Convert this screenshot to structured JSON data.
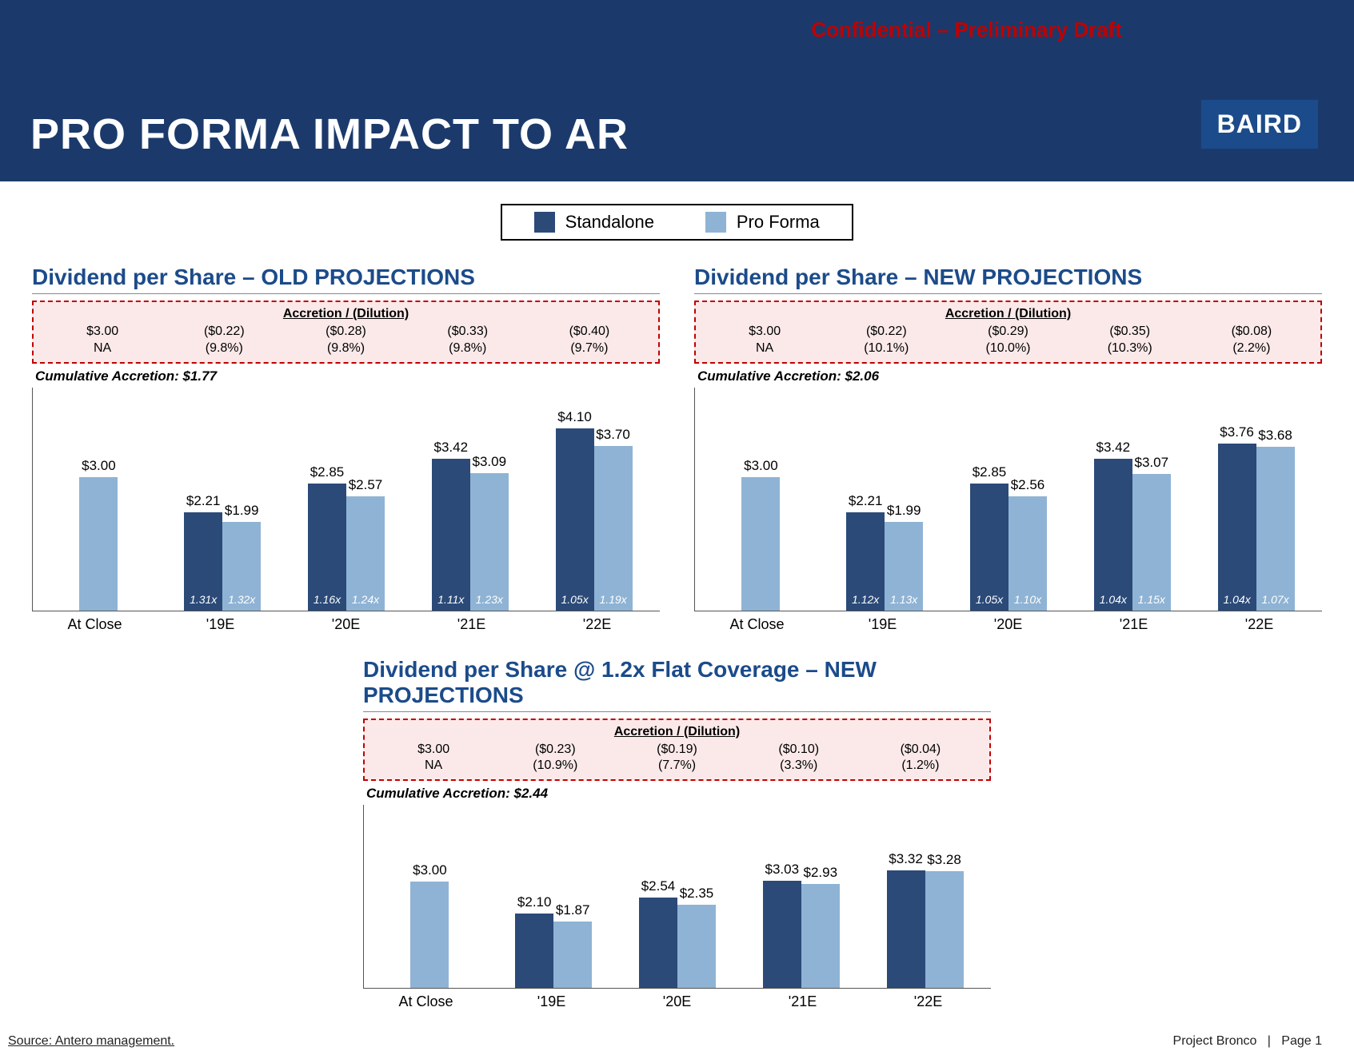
{
  "header": {
    "confidential": "Confidential – Preliminary Draft",
    "title": "PRO FORMA IMPACT TO AR",
    "logo": "BAIRD"
  },
  "legend": {
    "standalone": {
      "label": "Standalone",
      "color": "#2b4a78"
    },
    "proforma": {
      "label": "Pro Forma",
      "color": "#8fb3d4"
    }
  },
  "colors": {
    "standalone": "#2b4a78",
    "proforma": "#8fb3d4",
    "axis": "#555555"
  },
  "ymax": 4.5,
  "charts": [
    {
      "title": "Dividend per Share – OLD PROJECTIONS",
      "accretion_header": "Accretion / (Dilution)",
      "accretion": [
        {
          "v1": "$3.00",
          "v2": "NA"
        },
        {
          "v1": "($0.22)",
          "v2": "(9.8%)"
        },
        {
          "v1": "($0.28)",
          "v2": "(9.8%)"
        },
        {
          "v1": "($0.33)",
          "v2": "(9.8%)"
        },
        {
          "v1": "($0.40)",
          "v2": "(9.7%)"
        }
      ],
      "cumulative": "Cumulative Accretion: $1.77",
      "categories": [
        "At Close",
        "'19E",
        "'20E",
        "'21E",
        "'22E"
      ],
      "groups": [
        {
          "bars": [
            {
              "value": 3.0,
              "label": "$3.00",
              "color": "#8fb3d4",
              "inner": ""
            }
          ]
        },
        {
          "bars": [
            {
              "value": 2.21,
              "label": "$2.21",
              "color": "#2b4a78",
              "inner": "1.31x"
            },
            {
              "value": 1.99,
              "label": "$1.99",
              "color": "#8fb3d4",
              "inner": "1.32x"
            }
          ]
        },
        {
          "bars": [
            {
              "value": 2.85,
              "label": "$2.85",
              "color": "#2b4a78",
              "inner": "1.16x"
            },
            {
              "value": 2.57,
              "label": "$2.57",
              "color": "#8fb3d4",
              "inner": "1.24x"
            }
          ]
        },
        {
          "bars": [
            {
              "value": 3.42,
              "label": "$3.42",
              "color": "#2b4a78",
              "inner": "1.11x"
            },
            {
              "value": 3.09,
              "label": "$3.09",
              "color": "#8fb3d4",
              "inner": "1.23x"
            }
          ]
        },
        {
          "bars": [
            {
              "value": 4.1,
              "label": "$4.10",
              "color": "#2b4a78",
              "inner": "1.05x"
            },
            {
              "value": 3.7,
              "label": "$3.70",
              "color": "#8fb3d4",
              "inner": "1.19x"
            }
          ]
        }
      ]
    },
    {
      "title": "Dividend per Share – NEW PROJECTIONS",
      "accretion_header": "Accretion / (Dilution)",
      "accretion": [
        {
          "v1": "$3.00",
          "v2": "NA"
        },
        {
          "v1": "($0.22)",
          "v2": "(10.1%)"
        },
        {
          "v1": "($0.29)",
          "v2": "(10.0%)"
        },
        {
          "v1": "($0.35)",
          "v2": "(10.3%)"
        },
        {
          "v1": "($0.08)",
          "v2": "(2.2%)"
        }
      ],
      "cumulative": "Cumulative Accretion: $2.06",
      "categories": [
        "At Close",
        "'19E",
        "'20E",
        "'21E",
        "'22E"
      ],
      "groups": [
        {
          "bars": [
            {
              "value": 3.0,
              "label": "$3.00",
              "color": "#8fb3d4",
              "inner": ""
            }
          ]
        },
        {
          "bars": [
            {
              "value": 2.21,
              "label": "$2.21",
              "color": "#2b4a78",
              "inner": "1.12x"
            },
            {
              "value": 1.99,
              "label": "$1.99",
              "color": "#8fb3d4",
              "inner": "1.13x"
            }
          ]
        },
        {
          "bars": [
            {
              "value": 2.85,
              "label": "$2.85",
              "color": "#2b4a78",
              "inner": "1.05x"
            },
            {
              "value": 2.56,
              "label": "$2.56",
              "color": "#8fb3d4",
              "inner": "1.10x"
            }
          ]
        },
        {
          "bars": [
            {
              "value": 3.42,
              "label": "$3.42",
              "color": "#2b4a78",
              "inner": "1.04x"
            },
            {
              "value": 3.07,
              "label": "$3.07",
              "color": "#8fb3d4",
              "inner": "1.15x"
            }
          ]
        },
        {
          "bars": [
            {
              "value": 3.76,
              "label": "$3.76",
              "color": "#2b4a78",
              "inner": "1.04x"
            },
            {
              "value": 3.68,
              "label": "$3.68",
              "color": "#8fb3d4",
              "inner": "1.07x"
            }
          ]
        }
      ]
    },
    {
      "title": "Dividend per Share @ 1.2x Flat Coverage – NEW PROJECTIONS",
      "accretion_header": "Accretion / (Dilution)",
      "accretion": [
        {
          "v1": "$3.00",
          "v2": "NA"
        },
        {
          "v1": "($0.23)",
          "v2": "(10.9%)"
        },
        {
          "v1": "($0.19)",
          "v2": "(7.7%)"
        },
        {
          "v1": "($0.10)",
          "v2": "(3.3%)"
        },
        {
          "v1": "($0.04)",
          "v2": "(1.2%)"
        }
      ],
      "cumulative": "Cumulative Accretion: $2.44",
      "categories": [
        "At Close",
        "'19E",
        "'20E",
        "'21E",
        "'22E"
      ],
      "groups": [
        {
          "bars": [
            {
              "value": 3.0,
              "label": "$3.00",
              "color": "#8fb3d4",
              "inner": ""
            }
          ]
        },
        {
          "bars": [
            {
              "value": 2.1,
              "label": "$2.10",
              "color": "#2b4a78",
              "inner": ""
            },
            {
              "value": 1.87,
              "label": "$1.87",
              "color": "#8fb3d4",
              "inner": ""
            }
          ]
        },
        {
          "bars": [
            {
              "value": 2.54,
              "label": "$2.54",
              "color": "#2b4a78",
              "inner": ""
            },
            {
              "value": 2.35,
              "label": "$2.35",
              "color": "#8fb3d4",
              "inner": ""
            }
          ]
        },
        {
          "bars": [
            {
              "value": 3.03,
              "label": "$3.03",
              "color": "#2b4a78",
              "inner": ""
            },
            {
              "value": 2.93,
              "label": "$2.93",
              "color": "#8fb3d4",
              "inner": ""
            }
          ]
        },
        {
          "bars": [
            {
              "value": 3.32,
              "label": "$3.32",
              "color": "#2b4a78",
              "inner": ""
            },
            {
              "value": 3.28,
              "label": "$3.28",
              "color": "#8fb3d4",
              "inner": ""
            }
          ]
        }
      ]
    }
  ],
  "footer": {
    "source": "Source: Antero management.",
    "project": "Project Bronco",
    "page": "Page 1"
  }
}
